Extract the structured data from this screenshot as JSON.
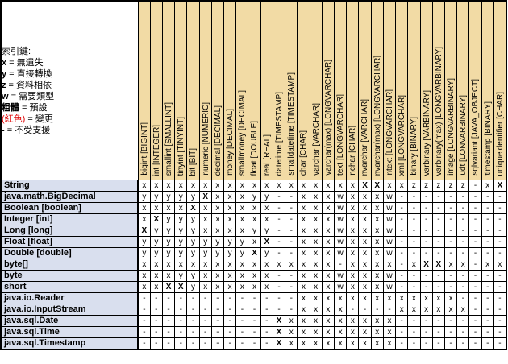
{
  "legend": {
    "title": "索引鍵:",
    "items": [
      {
        "key": "x",
        "desc": "無遺失",
        "key_style": "bold"
      },
      {
        "key": "y",
        "desc": "直接轉換",
        "key_style": "bold"
      },
      {
        "key": "z",
        "desc": "資料相依",
        "key_style": "bold"
      },
      {
        "key": "w",
        "desc": "需要類型",
        "key_style": "bold"
      },
      {
        "key": "粗體",
        "desc": "預設",
        "key_style": "bold"
      },
      {
        "key": "(紅色)",
        "desc": "變更",
        "key_style": "red"
      },
      {
        "key": "-",
        "desc": "不受支援",
        "key_style": "bold"
      }
    ]
  },
  "colors": {
    "header_bg": "#F2DBA5",
    "row_label_bg": "#D9DFEE",
    "cell_bg": "#FFFFFF",
    "grid": "#000000",
    "red_accent": "#E00000"
  },
  "chart_data": {
    "type": "table",
    "code_legend": "plain code = black normal; prefix b = bold black (default); prefix r = red (changed); - = not supported",
    "columns": [
      "bigint [BIGINT]",
      "int [INTEGER]",
      "smallint [SMALLINT]",
      "tinyint [TINYINT]",
      "bit [BIT]",
      "numeric [NUMERIC]",
      "decimal [DECIMAL]",
      "money [DECIMAL]",
      "smallmoney [DECIMAL]",
      "float [DOUBLE]",
      "real [REAL]",
      "datetime [TIMESTAMP]",
      "smalldatetime [TIMESTAMP]",
      "char [CHAR]",
      "varchar [VARCHAR]",
      "varchar(max) [LONGVARCHAR]",
      "text [LONGVARCHAR]",
      "nchar [CHAR]",
      "nvarchar [VARCHAR]",
      "nvarchar(max) [LONGVARCHAR]",
      "ntext [LONGVARCHAR]",
      "xml [LONGVARCHAR]",
      "binary [BINARY]",
      "varbinary [VARBINARY]",
      "varbinary(max) [LONGVARBINARY]",
      "image [LONGVARBINARY]",
      "udt [LONVARBINARY]",
      "sqlvariant [JAVA_OBJECT]",
      "timestamp [BINARY]",
      "uniqueidentifier [CHAR]"
    ],
    "rows": [
      {
        "label": "String",
        "cells": [
          "x",
          "x",
          "x",
          "x",
          "x",
          "x",
          "x",
          "x",
          "x",
          "x",
          "x",
          "x",
          "x",
          "x",
          "x",
          "x",
          "x",
          "x",
          "bX",
          "bX",
          "x",
          "x",
          "rz",
          "rz",
          "rz",
          "rz",
          "rz",
          "-",
          "x",
          "bX"
        ]
      },
      {
        "label": "java.math.BigDecimal",
        "cells": [
          "ry",
          "ry",
          "ry",
          "ry",
          "ry",
          "bX",
          "x",
          "x",
          "x",
          "ry",
          "ry",
          "-",
          "-",
          "rx",
          "rx",
          "rx",
          "rw",
          "rx",
          "rx",
          "rx",
          "rw",
          "-",
          "-",
          "-",
          "-",
          "-",
          "-",
          "-",
          "-",
          "-"
        ]
      },
      {
        "label": "Boolean [boolean]",
        "cells": [
          "x",
          "x",
          "x",
          "x",
          "bX",
          "x",
          "x",
          "x",
          "x",
          "x",
          "x",
          "-",
          "-",
          "rx",
          "rx",
          "rx",
          "rw",
          "rx",
          "rx",
          "rx",
          "rw",
          "-",
          "-",
          "-",
          "-",
          "-",
          "-",
          "-",
          "-",
          "-"
        ]
      },
      {
        "label": "Integer [int]",
        "cells": [
          "x",
          "bX",
          "ry",
          "ry",
          "ry",
          "x",
          "x",
          "x",
          "x",
          "x",
          "x",
          "-",
          "-",
          "rx",
          "rx",
          "rx",
          "rw",
          "rx",
          "rx",
          "rx",
          "rw",
          "-",
          "-",
          "-",
          "-",
          "-",
          "-",
          "-",
          "-",
          "-"
        ]
      },
      {
        "label": "Long [long]",
        "cells": [
          "bX",
          "ry",
          "ry",
          "ry",
          "ry",
          "x",
          "x",
          "x",
          "x",
          "ry",
          "ry",
          "-",
          "-",
          "rx",
          "rx",
          "rx",
          "rw",
          "rx",
          "rx",
          "rx",
          "rw",
          "-",
          "-",
          "-",
          "-",
          "-",
          "-",
          "-",
          "-",
          "-"
        ]
      },
      {
        "label": "Float [float]",
        "cells": [
          "ry",
          "ry",
          "ry",
          "ry",
          "ry",
          "ry",
          "ry",
          "ry",
          "ry",
          "x",
          "bX",
          "-",
          "-",
          "rx",
          "rx",
          "rx",
          "rw",
          "rx",
          "rx",
          "rx",
          "rw",
          "-",
          "-",
          "-",
          "-",
          "-",
          "-",
          "-",
          "-",
          "-"
        ]
      },
      {
        "label": "Double [double]",
        "cells": [
          "ry",
          "ry",
          "ry",
          "ry",
          "ry",
          "ry",
          "ry",
          "ry",
          "ry",
          "bX",
          "ry",
          "-",
          "-",
          "rx",
          "rx",
          "rx",
          "rw",
          "rx",
          "rx",
          "rx",
          "rw",
          "-",
          "-",
          "-",
          "-",
          "-",
          "-",
          "-",
          "-",
          "-"
        ]
      },
      {
        "label": "byte[]",
        "cells": [
          "x",
          "x",
          "x",
          "x",
          "x",
          "x",
          "x",
          "x",
          "x",
          "x",
          "x",
          "x",
          "x",
          "x",
          "x",
          "x",
          "-",
          "x",
          "x",
          "x",
          "x",
          "-",
          "x",
          "bX",
          "bX",
          "x",
          "x",
          "-",
          "x",
          "x"
        ]
      },
      {
        "label": "byte",
        "cells": [
          "x",
          "x",
          "x",
          "ry",
          "ry",
          "x",
          "x",
          "x",
          "x",
          "x",
          "x",
          "-",
          "-",
          "rx",
          "rx",
          "rx",
          "rw",
          "rx",
          "rx",
          "rx",
          "rw",
          "-",
          "-",
          "-",
          "-",
          "-",
          "-",
          "-",
          "-",
          "-"
        ]
      },
      {
        "label": "short",
        "cells": [
          "x",
          "x",
          "bX",
          "bX",
          "ry",
          "x",
          "x",
          "x",
          "x",
          "x",
          "x",
          "-",
          "-",
          "rx",
          "rx",
          "rx",
          "rw",
          "rx",
          "rx",
          "rx",
          "rw",
          "-",
          "-",
          "-",
          "-",
          "-",
          "-",
          "-",
          "-",
          "-"
        ]
      },
      {
        "label": "java.io.Reader",
        "cells": [
          "-",
          "-",
          "-",
          "-",
          "-",
          "-",
          "-",
          "-",
          "-",
          "-",
          "-",
          "-",
          "-",
          "x",
          "x",
          "x",
          "x",
          "x",
          "x",
          "x",
          "x",
          "x",
          "x",
          "x",
          "x",
          "x",
          "-",
          "-",
          "-",
          "-"
        ]
      },
      {
        "label": "java.io.InputStream",
        "cells": [
          "-",
          "-",
          "-",
          "-",
          "-",
          "-",
          "-",
          "-",
          "-",
          "-",
          "-",
          "-",
          "-",
          "x",
          "x",
          "x",
          "x",
          "-",
          "-",
          "-",
          "-",
          "x",
          "x",
          "x",
          "x",
          "x",
          "x",
          "-",
          "-",
          "-"
        ]
      },
      {
        "label": "java.sql.Date",
        "cells": [
          "-",
          "-",
          "-",
          "-",
          "-",
          "-",
          "-",
          "-",
          "-",
          "-",
          "-",
          "bX",
          "x",
          "rx",
          "rx",
          "rx",
          "rx",
          "rx",
          "rx",
          "rx",
          "rx",
          "-",
          "-",
          "-",
          "-",
          "-",
          "-",
          "-",
          "-",
          "-"
        ]
      },
      {
        "label": "java.sql.Time",
        "cells": [
          "-",
          "-",
          "-",
          "-",
          "-",
          "-",
          "-",
          "-",
          "-",
          "-",
          "-",
          "bX",
          "x",
          "rx",
          "rx",
          "rx",
          "rx",
          "rx",
          "rx",
          "rx",
          "rx",
          "-",
          "-",
          "-",
          "-",
          "-",
          "-",
          "-",
          "-",
          "-"
        ]
      },
      {
        "label": "java.sql.Timestamp",
        "cells": [
          "-",
          "-",
          "-",
          "-",
          "-",
          "-",
          "-",
          "-",
          "-",
          "-",
          "-",
          "bX",
          "x",
          "rx",
          "rx",
          "rx",
          "rx",
          "rx",
          "rx",
          "rx",
          "rx",
          "-",
          "-",
          "-",
          "-",
          "-",
          "-",
          "-",
          "-",
          "-"
        ]
      }
    ]
  }
}
